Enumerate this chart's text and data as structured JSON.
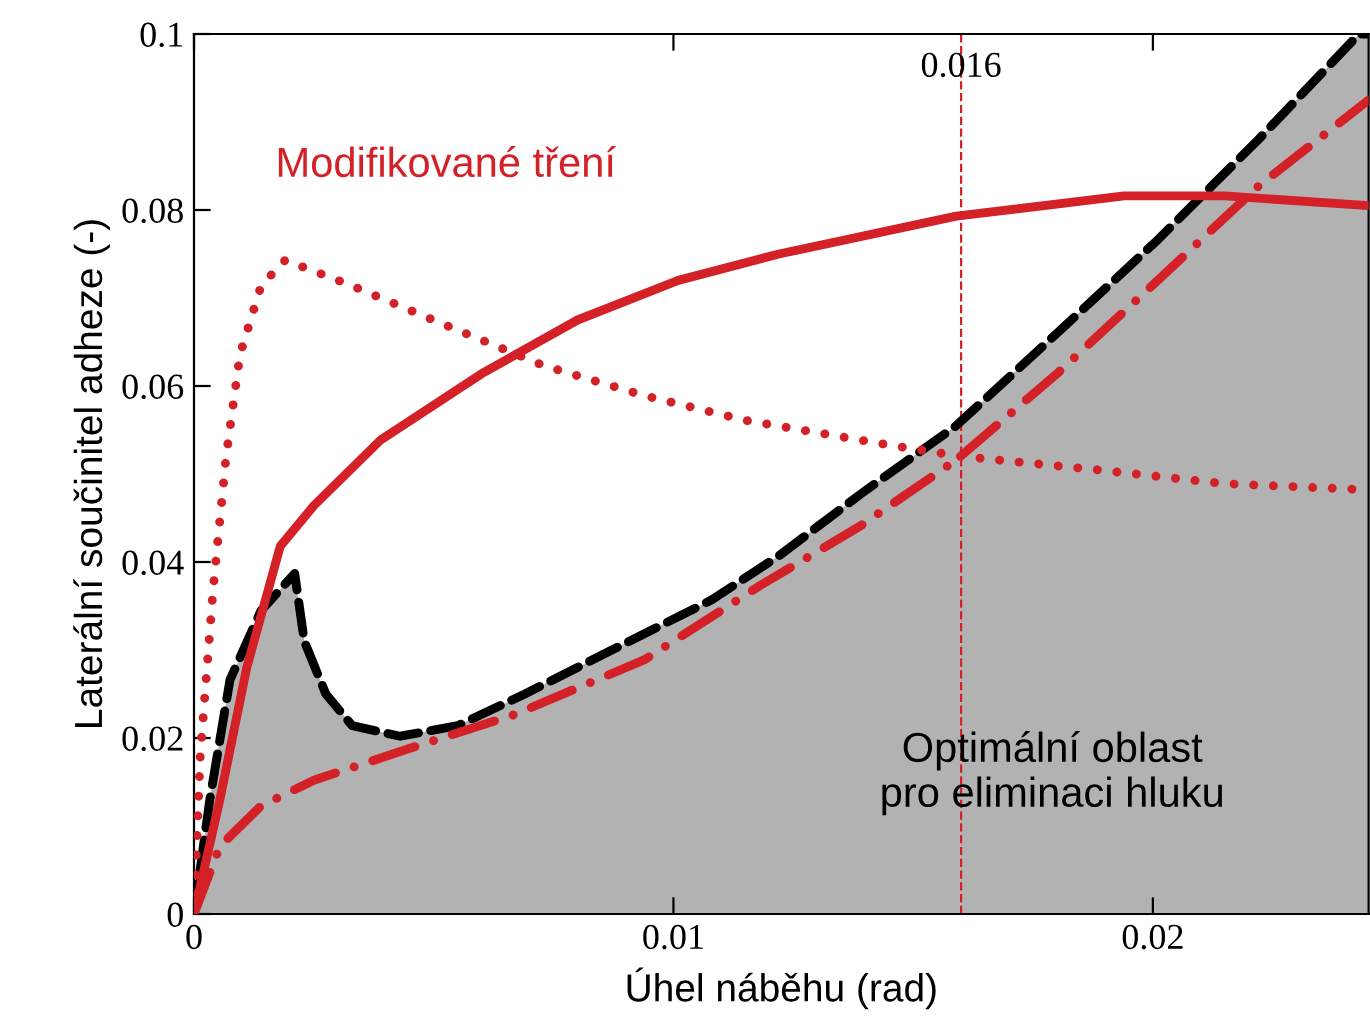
{
  "chart_data": {
    "type": "line",
    "xlabel": "Úhel náběhu (rad)",
    "ylabel": "Laterální součinitel adheze (-)",
    "xlim": [
      0,
      0.0245
    ],
    "ylim": [
      0,
      0.1
    ],
    "xticks": [
      0,
      0.01,
      0.02
    ],
    "yticks": [
      0,
      0.02,
      0.04,
      0.06,
      0.08,
      0.1
    ],
    "grid": false,
    "legend": false,
    "annotations": [
      "Modifikované tření",
      "Optimální oblast\npro eliminaci hluku"
    ],
    "ref_lines": [
      {
        "axis": "x",
        "value": 0.016,
        "label": "0.016",
        "color": "#d42027",
        "line_style": "dashed"
      }
    ],
    "series": [
      {
        "type": "area",
        "color": "#000000",
        "line_style": "dashed",
        "x": [
          0,
          0.00033,
          0.00075,
          0.0014,
          0.0021,
          0.0023,
          0.00275,
          0.0033,
          0.0043,
          0.0055,
          0.0069,
          0.0089,
          0.0108,
          0.0122,
          0.0139,
          0.0159,
          0.018,
          0.0201,
          0.0222,
          0.0243,
          0.0245
        ],
        "values": [
          0,
          0.013,
          0.0266,
          0.0345,
          0.0387,
          0.031,
          0.025,
          0.0214,
          0.0202,
          0.0214,
          0.025,
          0.0305,
          0.0357,
          0.0407,
          0.0477,
          0.0555,
          0.066,
          0.0766,
          0.088,
          0.1,
          0.1
        ]
      },
      {
        "color": "#d42027",
        "line_style": "solid",
        "x": [
          0,
          0.00054,
          0.0011,
          0.0018,
          0.0025,
          0.0039,
          0.006,
          0.008,
          0.0101,
          0.0122,
          0.0159,
          0.0194,
          0.0215,
          0.0245
        ],
        "values": [
          0,
          0.013,
          0.028,
          0.0418,
          0.0464,
          0.0539,
          0.0614,
          0.0675,
          0.072,
          0.075,
          0.0793,
          0.0816,
          0.0816,
          0.0805
        ]
      },
      {
        "color": "#d42027",
        "line_style": "dotted",
        "x": [
          0,
          0.00013,
          0.0004,
          0.00067,
          0.00096,
          0.0014,
          0.0019,
          0.0032,
          0.0053,
          0.0073,
          0.0094,
          0.0115,
          0.0146,
          0.016,
          0.0188,
          0.0215,
          0.0245
        ],
        "values": [
          0,
          0.018,
          0.037,
          0.052,
          0.0636,
          0.0714,
          0.0743,
          0.0716,
          0.0668,
          0.0623,
          0.0589,
          0.0561,
          0.0532,
          0.052,
          0.0505,
          0.0489,
          0.0482
        ]
      },
      {
        "color": "#d42027",
        "line_style": "dashdot",
        "x": [
          0,
          0.00054,
          0.0014,
          0.0025,
          0.0046,
          0.0067,
          0.0094,
          0.0118,
          0.0139,
          0.0159,
          0.018,
          0.0201,
          0.0222,
          0.0245
        ],
        "values": [
          0,
          0.0077,
          0.0123,
          0.0152,
          0.019,
          0.0227,
          0.0289,
          0.0373,
          0.0441,
          0.0516,
          0.0614,
          0.072,
          0.0827,
          0.0925
        ]
      }
    ]
  }
}
